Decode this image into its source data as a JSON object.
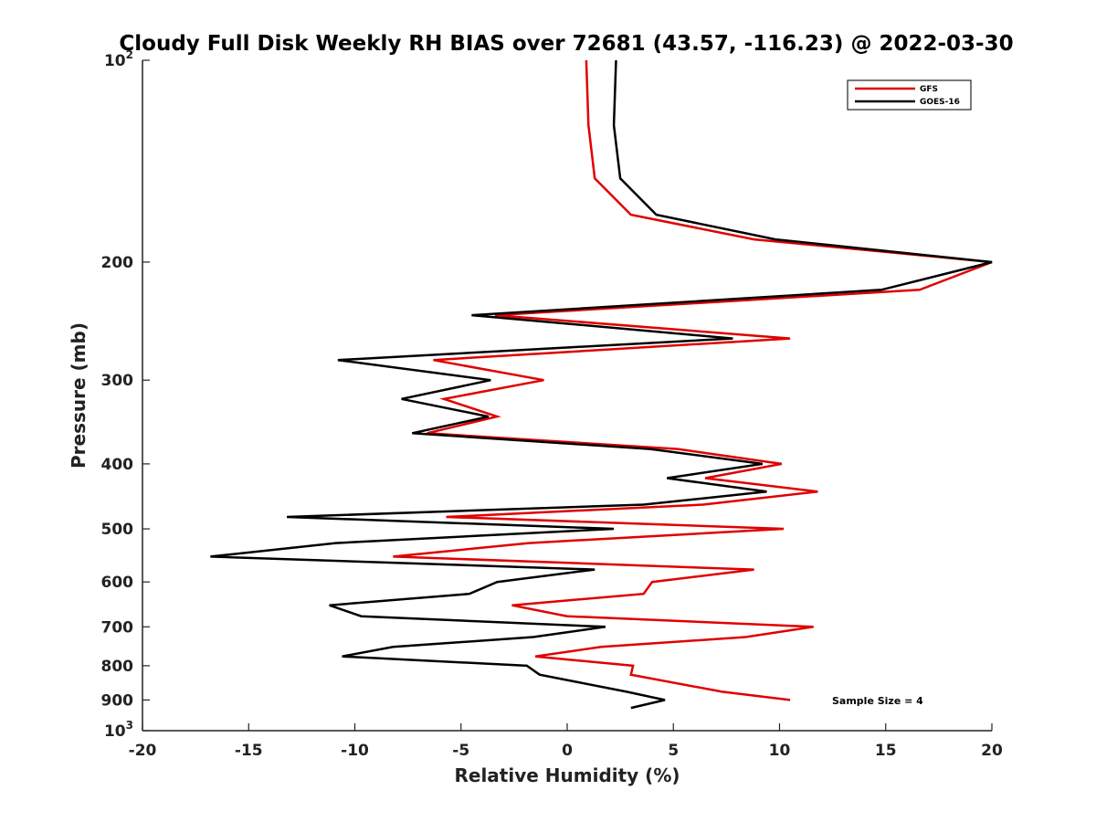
{
  "chart_data": {
    "type": "line",
    "title": "Cloudy Full Disk Weekly RH BIAS over 72681 (43.57, -116.23) @ 2022-03-30",
    "xlabel": "Relative Humidity (%)",
    "ylabel": "Pressure (mb)",
    "xlim": [
      -20,
      20
    ],
    "ylim": [
      100,
      1000
    ],
    "y_scale": "log",
    "y_reversed": true,
    "x_ticks": [
      -20,
      -15,
      -10,
      -5,
      0,
      5,
      10,
      15,
      20
    ],
    "y_ticks": [
      {
        "value": 100,
        "base": "10",
        "exp": "2"
      },
      {
        "value": 200,
        "label": "200"
      },
      {
        "value": 300,
        "label": "300"
      },
      {
        "value": 400,
        "label": "400"
      },
      {
        "value": 500,
        "label": "500"
      },
      {
        "value": 600,
        "label": "600"
      },
      {
        "value": 700,
        "label": "700"
      },
      {
        "value": 800,
        "label": "800"
      },
      {
        "value": 900,
        "label": "900"
      },
      {
        "value": 1000,
        "base": "10",
        "exp": "3"
      }
    ],
    "grid": false,
    "legend_position": "top-right",
    "annotation": "Sample Size = 4",
    "series": [
      {
        "name": "GFS",
        "color": "#e00000",
        "points": [
          [
            0.9,
            100
          ],
          [
            1.0,
            125
          ],
          [
            1.3,
            150
          ],
          [
            3.0,
            170
          ],
          [
            8.8,
            185
          ],
          [
            20.0,
            200
          ],
          [
            16.6,
            220
          ],
          [
            -3.4,
            240
          ],
          [
            10.5,
            260
          ],
          [
            -6.3,
            280
          ],
          [
            -1.1,
            300
          ],
          [
            -5.8,
            320
          ],
          [
            -3.3,
            340
          ],
          [
            -6.6,
            360
          ],
          [
            5.2,
            380
          ],
          [
            10.1,
            400
          ],
          [
            6.5,
            420
          ],
          [
            11.8,
            440
          ],
          [
            6.4,
            460
          ],
          [
            -5.7,
            480
          ],
          [
            10.2,
            500
          ],
          [
            -1.8,
            525
          ],
          [
            -8.2,
            550
          ],
          [
            8.8,
            575
          ],
          [
            4.0,
            600
          ],
          [
            3.6,
            625
          ],
          [
            -2.6,
            650
          ],
          [
            0.0,
            675
          ],
          [
            11.6,
            700
          ],
          [
            8.4,
            725
          ],
          [
            1.6,
            750
          ],
          [
            -1.5,
            775
          ],
          [
            3.1,
            800
          ],
          [
            3.0,
            825
          ],
          [
            7.3,
            875
          ],
          [
            10.5,
            900
          ]
        ]
      },
      {
        "name": "GOES-16",
        "color": "#000000",
        "points": [
          [
            2.3,
            100
          ],
          [
            2.2,
            125
          ],
          [
            2.5,
            150
          ],
          [
            4.2,
            170
          ],
          [
            9.8,
            185
          ],
          [
            20.0,
            200
          ],
          [
            14.8,
            220
          ],
          [
            -4.5,
            240
          ],
          [
            7.8,
            260
          ],
          [
            -10.8,
            280
          ],
          [
            -3.6,
            300
          ],
          [
            -7.8,
            320
          ],
          [
            -3.7,
            340
          ],
          [
            -7.3,
            360
          ],
          [
            3.9,
            380
          ],
          [
            9.2,
            400
          ],
          [
            4.7,
            420
          ],
          [
            9.4,
            440
          ],
          [
            3.6,
            460
          ],
          [
            -13.2,
            480
          ],
          [
            2.2,
            500
          ],
          [
            -10.9,
            525
          ],
          [
            -16.8,
            550
          ],
          [
            1.3,
            575
          ],
          [
            -3.3,
            600
          ],
          [
            -4.6,
            625
          ],
          [
            -11.2,
            650
          ],
          [
            -9.7,
            675
          ],
          [
            1.8,
            700
          ],
          [
            -1.6,
            725
          ],
          [
            -8.2,
            750
          ],
          [
            -10.6,
            775
          ],
          [
            -1.9,
            800
          ],
          [
            -1.3,
            825
          ],
          [
            2.8,
            875
          ],
          [
            4.6,
            900
          ],
          [
            3.0,
            925
          ]
        ]
      }
    ]
  }
}
